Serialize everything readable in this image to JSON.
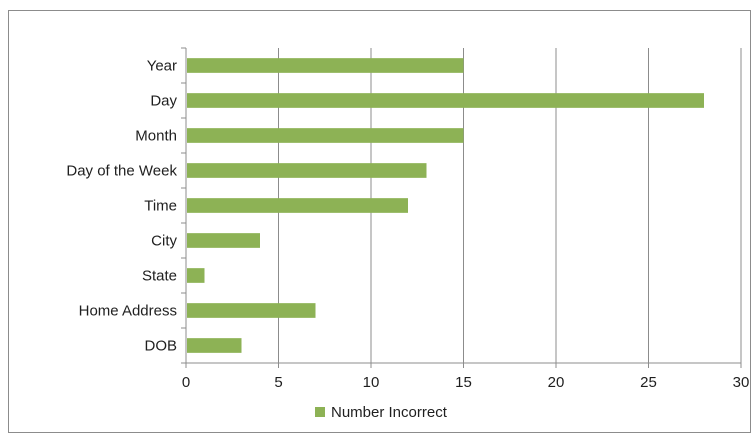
{
  "chart_data": {
    "type": "bar",
    "orientation": "horizontal",
    "title": "",
    "xlabel": "",
    "ylabel": "",
    "categories": [
      "Year",
      "Day",
      "Month",
      "Day of the Week",
      "Time",
      "City",
      "State",
      "Home Address",
      "DOB"
    ],
    "series": [
      {
        "name": "Number Incorrect",
        "values": [
          15,
          28,
          15,
          13,
          12,
          4,
          1,
          7,
          3
        ],
        "color": "#8db255"
      }
    ],
    "xlim": [
      0,
      30
    ],
    "x_ticks": [
      0,
      5,
      10,
      15,
      20,
      25,
      30
    ],
    "grid": "vertical",
    "legend": "bottom-center",
    "colors": {
      "bar": "#8db255",
      "grid": "#8c8c8c",
      "axis": "#8c8c8c",
      "text": "#1f1f1f",
      "border": "#8c8c8c"
    }
  }
}
